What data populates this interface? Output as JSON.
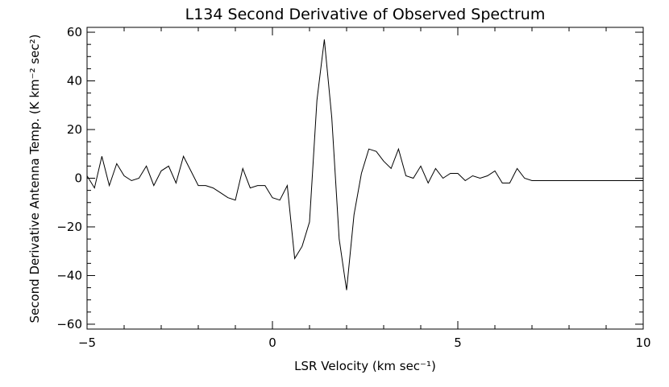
{
  "chart_data": {
    "type": "line",
    "title": "L134 Second Derivative of Observed Spectrum",
    "xlabel": "LSR Velocity (km sec⁻¹)",
    "ylabel": "Second Derivative Antenna Temp. (K km⁻² sec²)",
    "xlim": [
      -5,
      10
    ],
    "ylim": [
      -62,
      62
    ],
    "xticks": [
      -5,
      0,
      5,
      10
    ],
    "xtick_labels": [
      "−5",
      "0",
      "5",
      "10"
    ],
    "yticks": [
      -60,
      -40,
      -20,
      0,
      20,
      40,
      60
    ],
    "ytick_labels": [
      "−60",
      "−40",
      "−20",
      "0",
      "20",
      "40",
      "60"
    ],
    "grid": false,
    "line_color": "#000000",
    "series": [
      {
        "x": [
          -5.0,
          -4.8,
          -4.6,
          -4.4,
          -4.2,
          -4.0,
          -3.8,
          -3.6,
          -3.4,
          -3.2,
          -3.0,
          -2.8,
          -2.6,
          -2.4,
          -2.2,
          -2.0,
          -1.8,
          -1.6,
          -1.4,
          -1.2,
          -1.0,
          -0.8,
          -0.6,
          -0.4,
          -0.2,
          0.0,
          0.2,
          0.4,
          0.6,
          0.8,
          1.0,
          1.2,
          1.4,
          1.6,
          1.8,
          2.0,
          2.2,
          2.4,
          2.6,
          2.8,
          3.0,
          3.2,
          3.4,
          3.6,
          3.8,
          4.0,
          4.2,
          4.4,
          4.6,
          4.8,
          5.0,
          5.2,
          5.4,
          5.6,
          5.8,
          6.0,
          6.2,
          6.4,
          6.6,
          6.8,
          7.0,
          7.2,
          7.4,
          7.6,
          7.8,
          8.0,
          8.2,
          8.4,
          8.6,
          8.8,
          9.0,
          9.2,
          9.4,
          9.6,
          9.8,
          10.0
        ],
        "y": [
          1,
          -4,
          9,
          -3,
          6,
          1,
          -1,
          0,
          5,
          -3,
          3,
          5,
          -2,
          9,
          3,
          -3,
          -3,
          -4,
          -6,
          -8,
          -9,
          4,
          -4,
          -3,
          -3,
          -8,
          -9,
          -3,
          -33,
          -28,
          -18,
          32,
          57,
          25,
          -25,
          -46,
          -15,
          2,
          12,
          11,
          7,
          4,
          12,
          1,
          0,
          5,
          -2,
          4,
          0,
          2,
          2,
          -1,
          1,
          0,
          1,
          3,
          -2,
          -2,
          4,
          0,
          -1,
          -1,
          -1,
          -1,
          -1,
          -1,
          -1,
          -1,
          -1,
          -1,
          -1,
          -1,
          -1,
          -1,
          -1,
          -1
        ]
      }
    ]
  }
}
